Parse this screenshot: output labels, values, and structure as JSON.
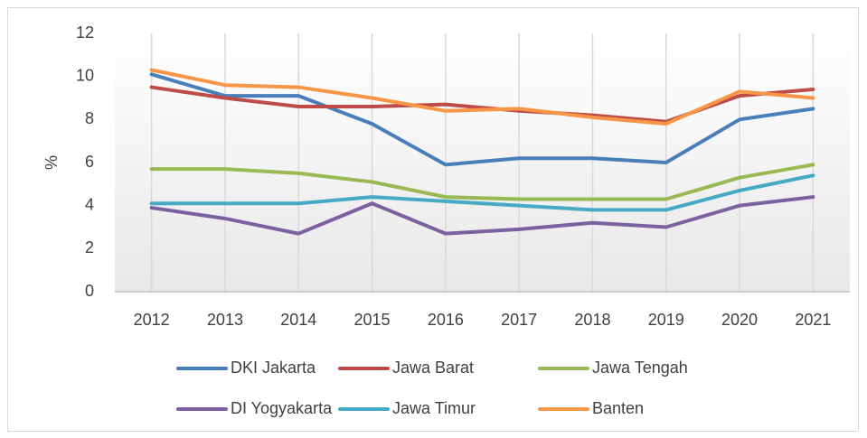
{
  "chart_data": {
    "type": "line",
    "ylabel": "%",
    "categories": [
      "2012",
      "2013",
      "2014",
      "2015",
      "2016",
      "2017",
      "2018",
      "2019",
      "2020",
      "2021"
    ],
    "series": [
      {
        "name": "DKI Jakarta",
        "color": "#4a7ebb",
        "values": [
          10.1,
          9.1,
          9.1,
          7.8,
          5.9,
          6.2,
          6.2,
          6.0,
          8.0,
          8.5
        ]
      },
      {
        "name": "Jawa Barat",
        "color": "#be4b48",
        "values": [
          9.5,
          9.0,
          8.6,
          8.6,
          8.7,
          8.4,
          8.2,
          7.9,
          9.1,
          9.4
        ]
      },
      {
        "name": "Jawa Tengah",
        "color": "#98b954",
        "values": [
          5.7,
          5.7,
          5.5,
          5.1,
          4.4,
          4.3,
          4.3,
          4.3,
          5.3,
          5.9
        ]
      },
      {
        "name": "DI Yogyakarta",
        "color": "#7d60a0",
        "values": [
          3.9,
          3.4,
          2.7,
          4.1,
          2.7,
          2.9,
          3.2,
          3.0,
          4.0,
          4.4
        ]
      },
      {
        "name": "Jawa Timur",
        "color": "#46aac5",
        "values": [
          4.1,
          4.1,
          4.1,
          4.4,
          4.2,
          4.0,
          3.8,
          3.8,
          4.7,
          5.4
        ]
      },
      {
        "name": "Banten",
        "color": "#f79646",
        "values": [
          10.3,
          9.6,
          9.5,
          9.0,
          8.4,
          8.5,
          8.1,
          7.8,
          9.3,
          9.0
        ]
      }
    ],
    "ylim": [
      0,
      12
    ],
    "yticks": [
      0,
      2,
      4,
      6,
      8,
      10,
      12
    ],
    "grid": true,
    "legend": "bottom"
  }
}
